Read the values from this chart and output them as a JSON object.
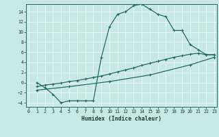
{
  "xlabel": "Humidex (Indice chaleur)",
  "background_color": "#c8e8e4",
  "grid_color": "#e8f8f6",
  "line_color": "#1e6b5e",
  "xlim": [
    -0.3,
    23.3
  ],
  "ylim": [
    -4.8,
    15.5
  ],
  "xticks": [
    0,
    1,
    2,
    3,
    4,
    5,
    6,
    7,
    8,
    9,
    10,
    11,
    12,
    13,
    14,
    15,
    16,
    17,
    18,
    19,
    20,
    21,
    22,
    23
  ],
  "yticks": [
    -4,
    -2,
    0,
    2,
    4,
    6,
    8,
    10,
    12,
    14
  ],
  "curve1_x": [
    1,
    2,
    3,
    4,
    5,
    6,
    7,
    8,
    9,
    10,
    11,
    12,
    13,
    14,
    15,
    16,
    17,
    18,
    19,
    20,
    21,
    22,
    23
  ],
  "curve1_y": [
    0.0,
    -1.0,
    -2.3,
    -4.0,
    -3.6,
    -3.6,
    -3.6,
    -3.6,
    5.0,
    11.0,
    13.5,
    14.0,
    15.2,
    15.5,
    14.5,
    13.5,
    13.0,
    10.3,
    10.3,
    7.5,
    6.5,
    5.5,
    5.5
  ],
  "curve2_x": [
    1,
    2,
    3,
    4,
    5,
    6,
    7,
    8,
    9,
    10,
    11,
    12,
    13,
    14,
    15,
    16,
    17,
    18,
    19,
    20,
    21,
    22,
    23
  ],
  "curve2_y": [
    -0.8,
    -0.5,
    -0.3,
    -0.1,
    0.2,
    0.4,
    0.7,
    1.0,
    1.3,
    1.7,
    2.1,
    2.5,
    2.9,
    3.4,
    3.8,
    4.2,
    4.6,
    5.0,
    5.3,
    5.6,
    5.8,
    5.5,
    5.5
  ],
  "curve3_x": [
    1,
    5,
    10,
    15,
    20,
    23
  ],
  "curve3_y": [
    -1.5,
    -0.8,
    0.2,
    1.5,
    3.5,
    5.0
  ]
}
